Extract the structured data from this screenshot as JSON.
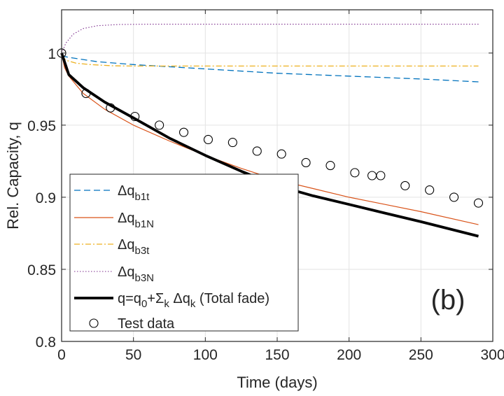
{
  "chart_data": {
    "type": "line",
    "xlabel": "Time (days)",
    "ylabel": "Rel. Capacity, q",
    "xlim": [
      0,
      300
    ],
    "ylim": [
      0.8,
      1.03
    ],
    "xticks": [
      0,
      50,
      100,
      150,
      200,
      250,
      300
    ],
    "xtick_labels": [
      "0",
      "50",
      "100",
      "150",
      "200",
      "250",
      "300"
    ],
    "yticks": [
      0.8,
      0.85,
      0.9,
      0.95,
      1
    ],
    "ytick_labels": [
      "0.8",
      "0.85",
      "0.9",
      "0.95",
      "1"
    ],
    "grid": true,
    "legend_placement": "bottom-left",
    "annotation": "(b)",
    "series": [
      {
        "name": "Δq_b1t",
        "label_main": "Δq",
        "label_sub": "b1t",
        "color": "#0072BD",
        "style": "dashed",
        "x": [
          0,
          5,
          25,
          50,
          100,
          150,
          200,
          250,
          290
        ],
        "y": [
          0.998,
          0.997,
          0.994,
          0.992,
          0.989,
          0.986,
          0.984,
          0.982,
          0.98
        ]
      },
      {
        "name": "Δq_b1N",
        "label_main": "Δq",
        "label_sub": "b1N",
        "color": "#D95319",
        "style": "solid",
        "x": [
          0,
          2,
          5,
          15,
          30,
          50,
          75,
          100,
          125,
          150,
          175,
          200,
          225,
          250,
          290
        ],
        "y": [
          1,
          0.99,
          0.984,
          0.972,
          0.961,
          0.95,
          0.939,
          0.929,
          0.92,
          0.912,
          0.906,
          0.9,
          0.895,
          0.89,
          0.881
        ]
      },
      {
        "name": "Δq_b3t",
        "label_main": "Δq",
        "label_sub": "b3t",
        "color": "#EDB120",
        "style": "dashdot",
        "x": [
          0,
          3,
          10,
          20,
          35,
          50,
          100,
          200,
          290
        ],
        "y": [
          0.998,
          0.995,
          0.993,
          0.992,
          0.9912,
          0.991,
          0.991,
          0.991,
          0.991
        ]
      },
      {
        "name": "Δq_b3N",
        "label_main": "Δq",
        "label_sub": "b3N",
        "color": "#7E2F8E",
        "style": "dotted",
        "x": [
          0,
          3,
          8,
          15,
          25,
          40,
          60,
          100,
          200,
          290
        ],
        "y": [
          1,
          1.007,
          1.013,
          1.017,
          1.019,
          1.0198,
          1.02,
          1.02,
          1.02,
          1.02
        ]
      },
      {
        "name": "q=q0+Σk Δqk (Total fade)",
        "label_parts": [
          "q=q",
          "0",
          "+Σ",
          "k",
          " Δq",
          "k",
          " (Total fade)"
        ],
        "color": "#000000",
        "style": "thick",
        "x": [
          0,
          5,
          15,
          30,
          50,
          75,
          100,
          125,
          150,
          175,
          200,
          225,
          250,
          290
        ],
        "y": [
          1,
          0.985,
          0.976,
          0.966,
          0.955,
          0.941,
          0.929,
          0.918,
          0.908,
          0.901,
          0.895,
          0.889,
          0.883,
          0.873
        ]
      },
      {
        "name": "Test data",
        "label_main": "Test data",
        "color": "#000000",
        "style": "markers-circle",
        "x": [
          0,
          17,
          34,
          51,
          68,
          85,
          102,
          119,
          136,
          153,
          170,
          187,
          204,
          216,
          222,
          239,
          256,
          273,
          290
        ],
        "y": [
          1,
          0.972,
          0.962,
          0.956,
          0.95,
          0.945,
          0.94,
          0.938,
          0.932,
          0.93,
          0.924,
          0.922,
          0.917,
          0.915,
          0.915,
          0.908,
          0.905,
          0.9,
          0.896
        ]
      }
    ]
  }
}
